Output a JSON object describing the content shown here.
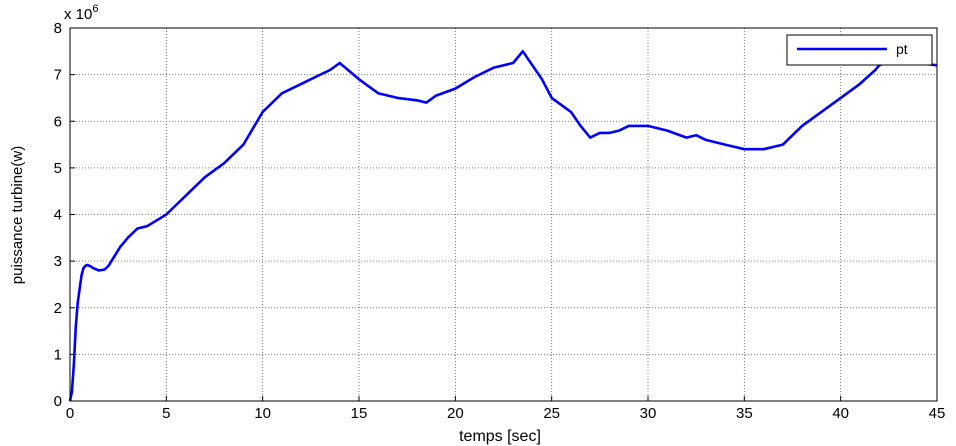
{
  "chart_data": {
    "type": "line",
    "title": "",
    "xlabel": "temps [sec]",
    "ylabel": "puissance turbine(w)",
    "xlim": [
      0,
      45
    ],
    "ylim": [
      0,
      8
    ],
    "y_multiplier_label": "x 10",
    "y_multiplier_exponent": "6",
    "grid": true,
    "legend_position": "top-right",
    "x_ticks": [
      0,
      5,
      10,
      15,
      20,
      25,
      30,
      35,
      40,
      45
    ],
    "y_ticks": [
      0,
      1,
      2,
      3,
      4,
      5,
      6,
      7,
      8
    ],
    "x_tick_labels": [
      "0",
      "5",
      "10",
      "15",
      "20",
      "25",
      "30",
      "35",
      "40",
      "45"
    ],
    "y_tick_labels": [
      "0",
      "1",
      "2",
      "3",
      "4",
      "5",
      "6",
      "7",
      "8"
    ],
    "series": [
      {
        "name": "pt",
        "color": "#0000ff",
        "x": [
          0,
          0.1,
          0.2,
          0.3,
          0.4,
          0.5,
          0.6,
          0.7,
          0.8,
          0.9,
          1.0,
          1.1,
          1.2,
          1.5,
          1.8,
          2.0,
          2.3,
          2.6,
          3.0,
          3.5,
          4.0,
          5.0,
          6.0,
          7.0,
          8.0,
          9.0,
          10.0,
          11.0,
          12.0,
          13.0,
          13.5,
          14.0,
          15.0,
          16.0,
          17.0,
          18.0,
          18.5,
          19.0,
          20.0,
          21.0,
          22.0,
          23.0,
          23.5,
          24.0,
          24.5,
          25.0,
          26.0,
          26.5,
          27.0,
          27.5,
          28.0,
          28.5,
          29.0,
          30.0,
          31.0,
          32.0,
          32.5,
          33.0,
          34.0,
          34.5,
          35.0,
          36.0,
          37.0,
          38.0,
          39.0,
          40.0,
          41.0,
          41.8,
          42.0,
          43.0,
          44.0,
          45.0
        ],
        "y": [
          0,
          0.2,
          0.8,
          1.6,
          2.1,
          2.4,
          2.7,
          2.85,
          2.9,
          2.92,
          2.9,
          2.88,
          2.85,
          2.8,
          2.82,
          2.9,
          3.1,
          3.3,
          3.5,
          3.7,
          3.75,
          4.0,
          4.4,
          4.8,
          5.1,
          5.5,
          6.2,
          6.6,
          6.8,
          7.0,
          7.1,
          7.25,
          6.9,
          6.6,
          6.5,
          6.45,
          6.4,
          6.55,
          6.7,
          6.95,
          7.15,
          7.25,
          7.5,
          7.2,
          6.9,
          6.5,
          6.2,
          5.9,
          5.65,
          5.75,
          5.75,
          5.8,
          5.9,
          5.9,
          5.8,
          5.65,
          5.7,
          5.6,
          5.5,
          5.45,
          5.4,
          5.4,
          5.5,
          5.9,
          6.2,
          6.5,
          6.8,
          7.1,
          7.2,
          7.35,
          7.25,
          7.2
        ]
      }
    ]
  }
}
